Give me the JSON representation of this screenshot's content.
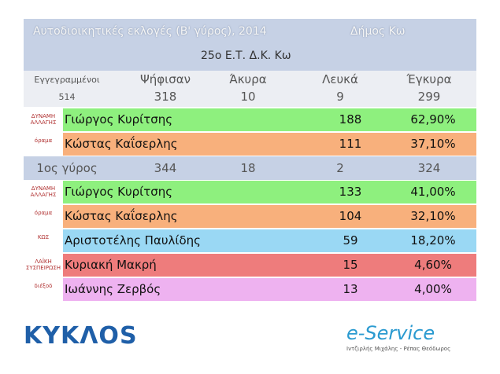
{
  "header": {
    "title": "Αυτοδιοικητικές εκλογές (Β' γύρος), 2014",
    "municipality": "Δήμος Κω",
    "station": "25ο Ε.Τ. Δ.Κ. Κω"
  },
  "stats": {
    "labels": [
      "Εγγεγραμμένοι",
      "Ψήφισαν",
      "Άκυρα",
      "Λευκά",
      "Έγκυρα"
    ],
    "values": [
      514,
      318,
      10,
      9,
      299
    ]
  },
  "round2": {
    "rows": [
      {
        "logo": "ΔΥΝΑΜΗ ΑΛΛΑΓΗΣ",
        "name": "Γιώργος Κυρίτσης",
        "votes": 188,
        "percent": "62,90%"
      },
      {
        "logo": "όραμα",
        "name": "Κώστας Καΐσερλης",
        "votes": 111,
        "percent": "37,10%"
      }
    ]
  },
  "round1": {
    "label": "1ος γύρος",
    "totals": [
      344,
      18,
      2,
      324
    ],
    "rows": [
      {
        "logo": "ΔΥΝΑΜΗ ΑΛΛΑΓΗΣ",
        "name": "Γιώργος Κυρίτσης",
        "votes": 133,
        "percent": "41,00%"
      },
      {
        "logo": "όραμα",
        "name": "Κώστας Καΐσερλης",
        "votes": 104,
        "percent": "32,10%"
      },
      {
        "logo": "ΚΩΣ",
        "name": "Αριστοτέλης Παυλίδης",
        "votes": 59,
        "percent": "18,20%"
      },
      {
        "logo": "ΛΑΪΚΗ ΣΥΣΠΕΙΡΩΣΗ",
        "name": "Κυριακή Μακρή",
        "votes": 15,
        "percent": "4,60%"
      },
      {
        "logo": "διέξοδ",
        "name": "Ιωάννης Ζερβός",
        "votes": 13,
        "percent": "4,00%"
      }
    ]
  },
  "footer": {
    "brand": "ΚΥΚΛΟS",
    "service": "e-Service",
    "credits": "Ιντζιρλής Μιχάλης - Ρέπας Θεόδωρος"
  }
}
